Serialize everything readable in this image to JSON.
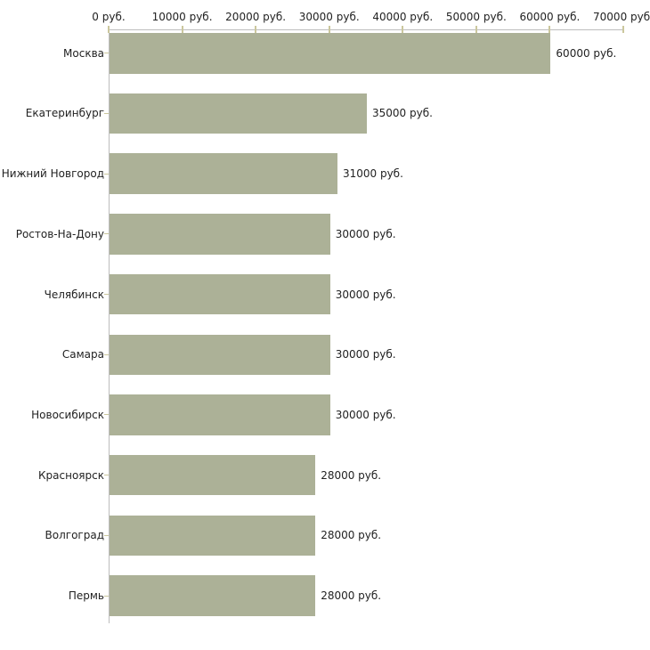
{
  "chart_data": {
    "type": "bar",
    "orientation": "horizontal",
    "title": "",
    "categories": [
      "Москва",
      "Екатеринбург",
      "Нижний Новгород",
      "Ростов-На-Дону",
      "Челябинск",
      "Самара",
      "Новосибирск",
      "Красноярск",
      "Волгоград",
      "Пермь"
    ],
    "values": [
      60000,
      35000,
      31000,
      30000,
      30000,
      30000,
      30000,
      28000,
      28000,
      28000
    ],
    "value_labels": [
      "60000 руб.",
      "35000 руб.",
      "31000 руб.",
      "30000 руб.",
      "30000 руб.",
      "30000 руб.",
      "30000 руб.",
      "28000 руб.",
      "28000 руб.",
      "28000 руб."
    ],
    "unit": "руб.",
    "x_axis": {
      "position": "top",
      "range": [
        0,
        70000
      ],
      "ticks": [
        0,
        10000,
        20000,
        30000,
        40000,
        50000,
        60000,
        70000
      ],
      "tick_labels": [
        "0 руб.",
        "10000 руб.",
        "20000 руб.",
        "30000 руб.",
        "40000 руб.",
        "50000 руб.",
        "60000 руб.",
        "70000 руб."
      ]
    },
    "legend": null,
    "grid": false,
    "colors": {
      "bar": "#acb197",
      "axis_line": "#bdbdbd",
      "tick": "#cbc79d",
      "text": "#222222",
      "background": "#ffffff"
    }
  }
}
